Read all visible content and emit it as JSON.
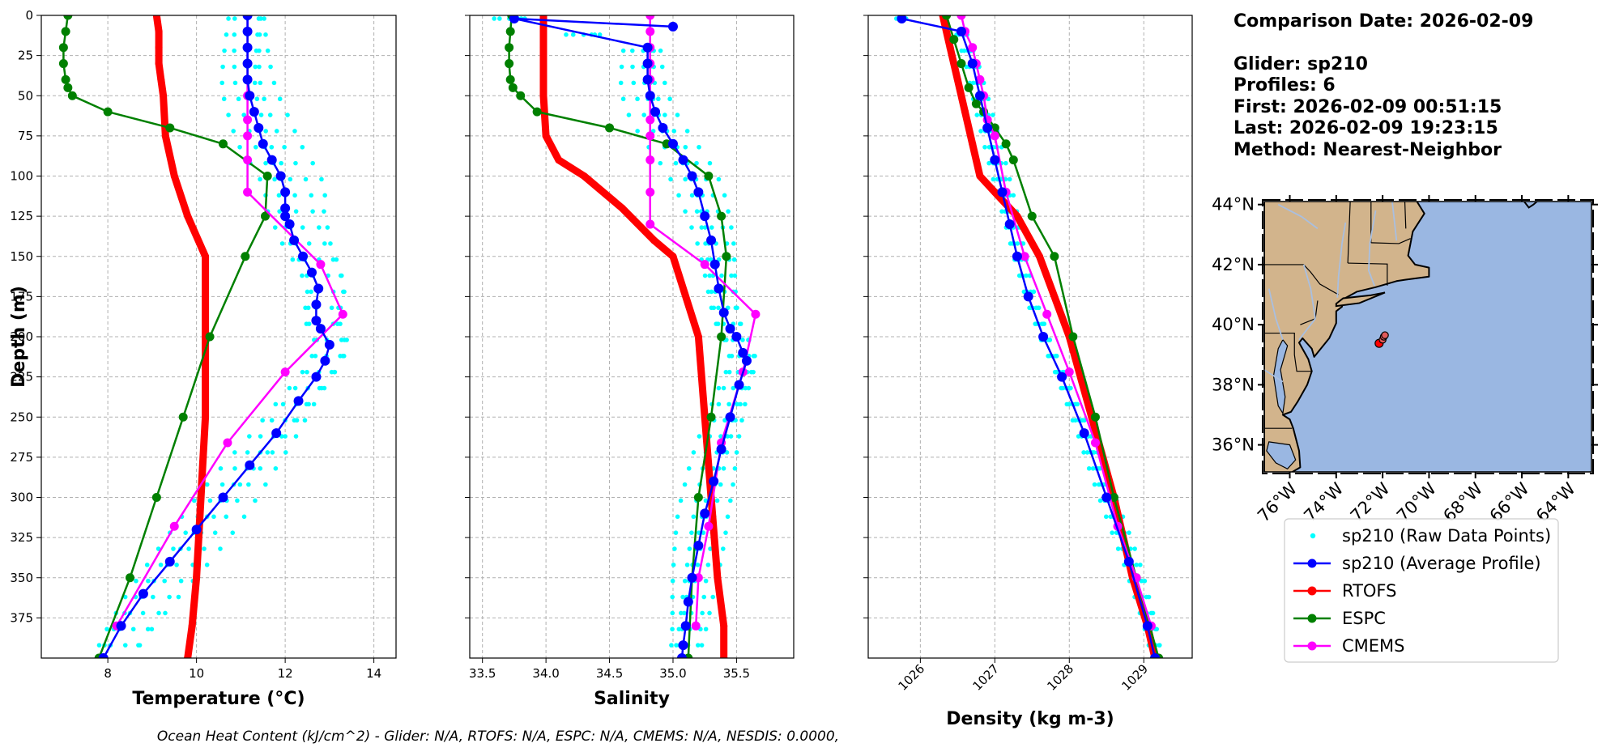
{
  "info": {
    "comparison_date": "Comparison Date: 2026-02-09",
    "glider": "Glider: sp210",
    "profiles": "Profiles: 6",
    "first": "First: 2026-02-09 00:51:15",
    "last": "Last: 2026-02-09 19:23:15",
    "method": "Method: Nearest-Neighbor"
  },
  "footer": "Ocean Heat Content (kJ/cm^2) - Glider: N/A,  RTOFS: N/A,  ESPC: N/A,  CMEMS: N/A,  NESDIS: 0.0000,",
  "colors": {
    "raw": "#00ffff",
    "glider": "#0000ff",
    "rtofs": "#ff0000",
    "espc": "#008000",
    "cmems": "#ff00ff",
    "land": "#d2b48c",
    "ocean": "#9ab7e2"
  },
  "legend": [
    {
      "label": "sp210 (Raw Data Points)",
      "key": "raw",
      "style": "dot"
    },
    {
      "label": "sp210 (Average Profile)",
      "key": "glider",
      "style": "line"
    },
    {
      "label": "RTOFS",
      "key": "rtofs",
      "style": "line"
    },
    {
      "label": "ESPC",
      "key": "espc",
      "style": "line"
    },
    {
      "label": "CMEMS",
      "key": "cmems",
      "style": "line"
    }
  ],
  "chart_data": [
    {
      "type": "line",
      "xlabel": "Temperature (°C)",
      "ylabel": "Depth (m)",
      "xlim": [
        6.5,
        14.5
      ],
      "ylim": [
        400,
        0
      ],
      "xticks": [
        8,
        10,
        12,
        14
      ],
      "yticks": [
        0,
        25,
        50,
        75,
        100,
        125,
        150,
        175,
        200,
        225,
        250,
        275,
        300,
        325,
        350,
        375
      ],
      "grid": true,
      "series": [
        {
          "name": "RTOFS",
          "key": "rtofs",
          "x": [
            9.1,
            9.15,
            9.15,
            9.15,
            9.2,
            9.25,
            9.3,
            9.5,
            9.8,
            10.2,
            10.2,
            10.2,
            10.2,
            10.2,
            10.15,
            10.1,
            10.0,
            9.9,
            9.8
          ],
          "y": [
            0,
            10,
            20,
            30,
            40,
            50,
            75,
            100,
            125,
            150,
            175,
            200,
            225,
            250,
            275,
            300,
            350,
            380,
            400
          ]
        },
        {
          "name": "ESPC",
          "key": "espc",
          "x": [
            7.1,
            7.05,
            7.0,
            7.0,
            7.05,
            7.1,
            7.2,
            8.0,
            9.4,
            10.6,
            11.6,
            11.55,
            11.1,
            10.3,
            9.7,
            9.1,
            8.5,
            7.8
          ],
          "y": [
            0,
            10,
            20,
            30,
            40,
            45,
            50,
            60,
            70,
            80,
            100,
            125,
            150,
            200,
            250,
            300,
            350,
            400
          ]
        },
        {
          "name": "CMEMS",
          "key": "cmems",
          "x": [
            11.15,
            11.15,
            11.15,
            11.15,
            11.15,
            11.15,
            11.15,
            11.15,
            11.15,
            11.15,
            12.8,
            13.3,
            12.0,
            10.7,
            9.5,
            8.2
          ],
          "y": [
            0,
            10,
            20,
            30,
            40,
            50,
            65,
            75,
            90,
            110,
            155,
            186,
            222,
            266,
            318,
            380
          ]
        },
        {
          "name": "sp210 (Average Profile)",
          "key": "glider",
          "x": [
            11.15,
            11.15,
            11.15,
            11.15,
            11.15,
            11.2,
            11.3,
            11.4,
            11.5,
            11.7,
            11.9,
            12.0,
            12.0,
            12.0,
            12.1,
            12.2,
            12.4,
            12.6,
            12.75,
            12.7,
            12.7,
            12.8,
            13.0,
            12.9,
            12.7,
            12.3,
            11.8,
            11.2,
            10.6,
            10.0,
            9.4,
            8.8,
            8.3,
            7.9
          ],
          "y": [
            0,
            10,
            20,
            30,
            40,
            50,
            60,
            70,
            80,
            90,
            100,
            110,
            120,
            125,
            130,
            140,
            150,
            160,
            170,
            180,
            190,
            195,
            205,
            215,
            225,
            240,
            260,
            280,
            300,
            320,
            340,
            360,
            380,
            400
          ]
        }
      ],
      "raw_offsets": [
        -0.6,
        -0.3,
        0.0,
        0.35,
        0.65,
        0.9
      ],
      "raw_depths": [
        2,
        12,
        22,
        32,
        42,
        52,
        62,
        72,
        82,
        92,
        102,
        112,
        122,
        132,
        142,
        152,
        162,
        172,
        182,
        192,
        202,
        212,
        222,
        232,
        242,
        252,
        262,
        272,
        282,
        292,
        302,
        312,
        322,
        332,
        342,
        352,
        362,
        372,
        382,
        392
      ]
    },
    {
      "type": "line",
      "xlabel": "Salinity",
      "xlim": [
        33.4,
        35.95
      ],
      "ylim": [
        400,
        0
      ],
      "xticks": [
        33.5,
        34.0,
        34.5,
        35.0,
        35.5
      ],
      "xticklabels": [
        "33.5",
        "34.0",
        "34.5",
        "35.0",
        "35.5"
      ],
      "grid": true,
      "series": [
        {
          "name": "RTOFS",
          "key": "rtofs",
          "x": [
            33.98,
            33.98,
            33.98,
            33.98,
            33.98,
            33.98,
            34.0,
            34.1,
            34.3,
            34.6,
            34.85,
            35.0,
            35.2,
            35.25,
            35.3,
            35.35,
            35.4,
            35.4
          ],
          "y": [
            0,
            10,
            20,
            30,
            40,
            50,
            75,
            90,
            100,
            120,
            140,
            150,
            200,
            250,
            300,
            350,
            380,
            400
          ]
        },
        {
          "name": "ESPC",
          "key": "espc",
          "x": [
            33.73,
            33.72,
            33.71,
            33.71,
            33.72,
            33.74,
            33.8,
            33.93,
            34.5,
            34.95,
            35.28,
            35.38,
            35.42,
            35.38,
            35.3,
            35.2,
            35.15,
            35.12
          ],
          "y": [
            0,
            10,
            20,
            30,
            40,
            45,
            50,
            60,
            70,
            80,
            100,
            125,
            150,
            200,
            250,
            300,
            350,
            400
          ]
        },
        {
          "name": "CMEMS",
          "key": "cmems",
          "x": [
            34.82,
            34.82,
            34.82,
            34.82,
            34.82,
            34.82,
            34.82,
            34.82,
            34.82,
            34.82,
            34.82,
            35.25,
            35.65,
            35.55,
            35.38,
            35.28,
            35.2,
            35.18
          ],
          "y": [
            0,
            10,
            20,
            30,
            40,
            50,
            65,
            75,
            90,
            110,
            130,
            155,
            186,
            222,
            266,
            318,
            350,
            380
          ]
        },
        {
          "name": "sp210 (Average Profile)",
          "key": "glider",
          "x": [
            35.0,
            33.75,
            34.8,
            34.8,
            34.8,
            34.82,
            34.86,
            34.92,
            35.0,
            35.08,
            35.15,
            35.2,
            35.25,
            35.3,
            35.33,
            35.36,
            35.4,
            35.45,
            35.5,
            35.55,
            35.58,
            35.52,
            35.45,
            35.38,
            35.32,
            35.25,
            35.2,
            35.15,
            35.12,
            35.1,
            35.08,
            35.07
          ],
          "y": [
            7,
            2,
            20,
            30,
            40,
            50,
            60,
            70,
            80,
            90,
            100,
            110,
            125,
            140,
            155,
            170,
            185,
            195,
            200,
            210,
            215,
            230,
            250,
            270,
            290,
            310,
            330,
            350,
            365,
            380,
            392,
            400
          ]
        }
      ],
      "raw_offsets": [
        -0.22,
        -0.12,
        -0.04,
        0.04,
        0.12,
        0.2
      ],
      "raw_depths": [
        2,
        12,
        22,
        32,
        42,
        52,
        62,
        72,
        82,
        92,
        102,
        112,
        122,
        132,
        142,
        152,
        162,
        172,
        182,
        192,
        202,
        212,
        222,
        232,
        242,
        252,
        262,
        272,
        282,
        292,
        302,
        312,
        322,
        332,
        342,
        352,
        362,
        372,
        382,
        392
      ]
    },
    {
      "type": "line",
      "xlabel": "Density (kg m-3)",
      "xlim": [
        1025.3,
        1029.65
      ],
      "ylim": [
        400,
        0
      ],
      "xticks": [
        1026,
        1027,
        1028,
        1029
      ],
      "grid": true,
      "series": [
        {
          "name": "RTOFS",
          "key": "rtofs",
          "x": [
            1026.3,
            1026.4,
            1026.5,
            1026.6,
            1026.7,
            1026.8,
            1027.0,
            1027.3,
            1027.6,
            1028.0,
            1028.3,
            1028.6,
            1028.85,
            1029.05,
            1029.15
          ],
          "y": [
            0,
            20,
            40,
            60,
            80,
            100,
            110,
            125,
            150,
            200,
            250,
            300,
            350,
            380,
            400
          ]
        },
        {
          "name": "ESPC",
          "key": "espc",
          "x": [
            1026.35,
            1026.45,
            1026.55,
            1026.65,
            1026.75,
            1026.85,
            1027.0,
            1027.15,
            1027.25,
            1027.5,
            1027.8,
            1028.05,
            1028.35,
            1028.6,
            1028.9,
            1029.2
          ],
          "y": [
            0,
            15,
            30,
            45,
            55,
            60,
            70,
            80,
            90,
            125,
            150,
            200,
            250,
            300,
            350,
            400
          ]
        },
        {
          "name": "CMEMS",
          "key": "cmems",
          "x": [
            1026.55,
            1026.6,
            1026.7,
            1026.75,
            1026.8,
            1026.85,
            1026.9,
            1027.0,
            1027.15,
            1027.4,
            1027.7,
            1028.0,
            1028.35,
            1028.65,
            1028.9,
            1029.1
          ],
          "y": [
            0,
            10,
            20,
            30,
            40,
            50,
            65,
            75,
            110,
            150,
            186,
            222,
            266,
            318,
            350,
            380
          ]
        },
        {
          "name": "sp210 (Average Profile)",
          "key": "glider",
          "x": [
            1025.75,
            1026.55,
            1026.7,
            1026.8,
            1026.9,
            1027.0,
            1027.1,
            1027.2,
            1027.3,
            1027.45,
            1027.65,
            1027.9,
            1028.2,
            1028.5,
            1028.8,
            1029.05,
            1029.15
          ],
          "y": [
            2,
            10,
            30,
            50,
            70,
            90,
            110,
            130,
            150,
            175,
            200,
            225,
            260,
            300,
            340,
            380,
            400
          ]
        }
      ],
      "raw_offsets": [
        -0.1,
        -0.05,
        0.0,
        0.05,
        0.1,
        0.14
      ],
      "raw_depths": [
        2,
        12,
        22,
        32,
        42,
        52,
        62,
        72,
        82,
        92,
        102,
        112,
        122,
        132,
        142,
        152,
        162,
        172,
        182,
        192,
        202,
        212,
        222,
        232,
        242,
        252,
        262,
        272,
        282,
        292,
        302,
        312,
        322,
        332,
        342,
        352,
        362,
        372,
        382,
        392
      ]
    },
    {
      "type": "map",
      "lon_range": [
        -77.1,
        -63.0
      ],
      "lat_range": [
        35.1,
        44.1
      ],
      "xticks": [
        -76,
        -74,
        -72,
        -70,
        -68,
        -66,
        -64
      ],
      "xticklabels": [
        "76°W",
        "74°W",
        "72°W",
        "70°W",
        "68°W",
        "66°W",
        "64°W"
      ],
      "yticks": [
        36,
        38,
        40,
        42,
        44
      ],
      "yticklabels": [
        "36°N",
        "38°N",
        "40°N",
        "42°N",
        "44°N"
      ],
      "glider_points": [
        [
          -72.15,
          39.38
        ],
        [
          -72.0,
          39.5
        ],
        [
          -71.95,
          39.6
        ],
        [
          -71.9,
          39.65
        ]
      ]
    }
  ]
}
